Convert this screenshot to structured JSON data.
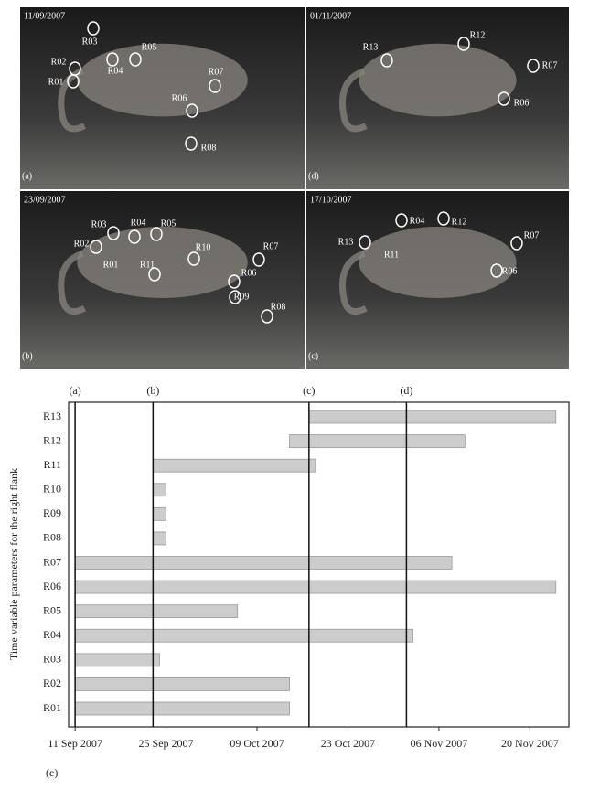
{
  "photos": [
    {
      "label": "(a)",
      "date": "11/09/2007",
      "regions": [
        "R03",
        "R02",
        "R01",
        "R04",
        "R05",
        "R07",
        "R06",
        "R08"
      ]
    },
    {
      "label": "(d)",
      "date": "01/11/2007",
      "regions": [
        "R13",
        "R12",
        "R07",
        "R06"
      ]
    },
    {
      "label": "(b)",
      "date": "23/09/2007",
      "regions": [
        "R03",
        "R02",
        "R01",
        "R04",
        "R05",
        "R10",
        "R11",
        "R07",
        "R06",
        "R09",
        "R08"
      ]
    },
    {
      "label": "(c)",
      "date": "17/10/2007",
      "regions": [
        "R04",
        "R12",
        "R13",
        "R11",
        "R07",
        "R06"
      ]
    }
  ],
  "chart_data": {
    "type": "range-bar",
    "panel_label": "(e)",
    "ylabel": "Time variable parameters for the right flank",
    "categories": [
      "R01",
      "R02",
      "R03",
      "R04",
      "R05",
      "R06",
      "R07",
      "R08",
      "R09",
      "R10",
      "R11",
      "R12",
      "R13"
    ],
    "ranges": [
      [
        "2007-09-11",
        "2007-10-14"
      ],
      [
        "2007-09-11",
        "2007-10-14"
      ],
      [
        "2007-09-11",
        "2007-09-24"
      ],
      [
        "2007-09-11",
        "2007-11-02"
      ],
      [
        "2007-09-11",
        "2007-10-06"
      ],
      [
        "2007-09-11",
        "2007-11-24"
      ],
      [
        "2007-09-11",
        "2007-11-08"
      ],
      [
        "2007-09-23",
        "2007-09-25"
      ],
      [
        "2007-09-23",
        "2007-09-25"
      ],
      [
        "2007-09-23",
        "2007-09-25"
      ],
      [
        "2007-09-23",
        "2007-10-18"
      ],
      [
        "2007-10-14",
        "2007-11-10"
      ],
      [
        "2007-10-17",
        "2007-11-24"
      ]
    ],
    "color": "#cccccc",
    "xlim": [
      "2007-09-10",
      "2007-11-26"
    ],
    "xticks": [
      {
        "value": "2007-09-11",
        "label": "11 Sep 2007"
      },
      {
        "value": "2007-09-25",
        "label": "25 Sep 2007"
      },
      {
        "value": "2007-10-09",
        "label": "09 Oct 2007"
      },
      {
        "value": "2007-10-23",
        "label": "23 Oct 2007"
      },
      {
        "value": "2007-11-06",
        "label": "06 Nov 2007"
      },
      {
        "value": "2007-11-20",
        "label": "20 Nov 2007"
      }
    ],
    "markers": [
      {
        "value": "2007-09-11",
        "label": "(a)"
      },
      {
        "value": "2007-09-23",
        "label": "(b)"
      },
      {
        "value": "2007-10-17",
        "label": "(c)"
      },
      {
        "value": "2007-11-01",
        "label": "(d)"
      }
    ]
  }
}
